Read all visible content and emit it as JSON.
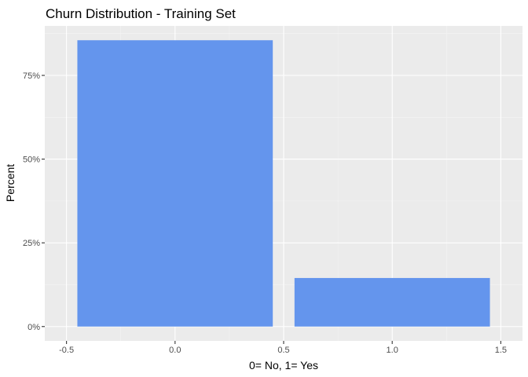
{
  "chart_data": {
    "type": "bar",
    "title": "Churn Distribution - Training Set",
    "xlabel": "0= No, 1= Yes",
    "ylabel": "Percent",
    "categories": [
      0,
      1
    ],
    "values": [
      0.855,
      0.145
    ],
    "bar_width": 0.9,
    "xlim": [
      -0.5,
      1.5
    ],
    "ylim": [
      0,
      0.855
    ],
    "x_ticks": [
      -0.5,
      0.0,
      0.5,
      1.0,
      1.5
    ],
    "x_tick_labels": [
      "-0.5",
      "0.0",
      "0.5",
      "1.0",
      "1.5"
    ],
    "y_ticks": [
      0,
      0.25,
      0.5,
      0.75
    ],
    "y_tick_labels": [
      "0%",
      "25%",
      "50%",
      "75%"
    ],
    "grid": true,
    "legend": "none",
    "colors": {
      "bar": "#6495ED",
      "panel": "#EBEBEB",
      "grid_major": "#FFFFFF",
      "grid_minor": "#F5F5F5"
    }
  }
}
